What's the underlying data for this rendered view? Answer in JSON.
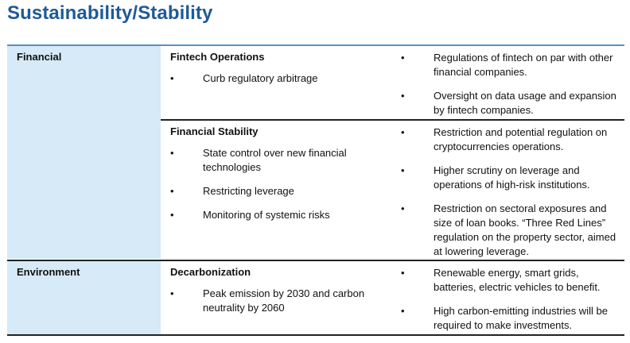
{
  "title": "Sustainability/Stability",
  "rows": [
    {
      "category": "Financial",
      "groups": [
        {
          "subtitle": "Fintech Operations",
          "left_bullets": [
            "Curb regulatory arbitrage"
          ],
          "right_bullets": [
            "Regulations of fintech on par with other financial companies.",
            "Oversight on data usage and expansion by fintech companies."
          ]
        },
        {
          "subtitle": "Financial Stability",
          "left_bullets": [
            "State control over new financial technologies",
            "Restricting leverage",
            "Monitoring of systemic risks"
          ],
          "right_bullets": [
            "Restriction and potential regulation on cryptocurrencies operations.",
            "Higher scrutiny on leverage and operations of high-risk institutions.",
            "Restriction on sectoral exposures and size of loan books. “Three Red Lines” regulation on the property sector, aimed at lowering leverage."
          ]
        }
      ]
    },
    {
      "category": "Environment",
      "groups": [
        {
          "subtitle": "Decarbonization",
          "left_bullets": [
            "Peak emission by 2030 and carbon neutrality by 2060"
          ],
          "right_bullets": [
            "Renewable energy, smart grids, batteries, electric vehicles to benefit.",
            "High carbon-emitting industries will be required to make investments."
          ]
        }
      ]
    }
  ],
  "bullet_glyph": "•",
  "colors": {
    "title": "#1f5a96",
    "category_bg": "#d6eaf7",
    "rule": "#5b8fc7"
  }
}
